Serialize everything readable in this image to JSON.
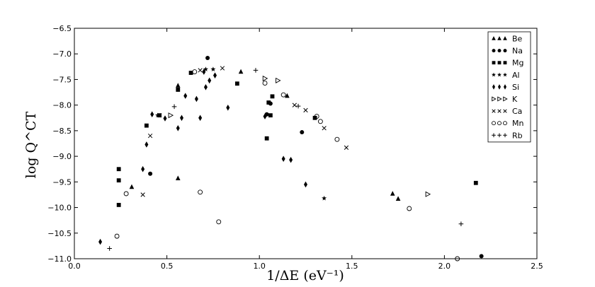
{
  "chart_data": {
    "type": "scatter",
    "xlabel": "1/ΔE (eV⁻¹)",
    "ylabel": "log Q^CT",
    "xlim": [
      0.0,
      2.5
    ],
    "ylim": [
      -11.0,
      -6.5
    ],
    "xticks": [
      0.0,
      0.5,
      1.0,
      1.5,
      2.0,
      2.5
    ],
    "xtick_labels": [
      "0.0",
      "0.5",
      "1.0",
      "1.5",
      "2.0",
      "2.5"
    ],
    "yticks": [
      -6.5,
      -7.0,
      -7.5,
      -8.0,
      -8.5,
      -9.0,
      -9.5,
      -10.0,
      -10.5,
      -11.0
    ],
    "ytick_labels": [
      "−6.5",
      "−7.0",
      "−7.5",
      "−8.0",
      "−8.5",
      "−9.0",
      "−9.5",
      "−10.0",
      "−10.5",
      "−11.0"
    ],
    "grid": false,
    "legend_position": "top-right",
    "series": [
      {
        "name": "Be",
        "marker": "triangle-up",
        "points": [
          [
            0.31,
            -9.6
          ],
          [
            0.56,
            -7.62
          ],
          [
            0.56,
            -9.43
          ],
          [
            0.9,
            -7.35
          ],
          [
            1.15,
            -7.82
          ],
          [
            1.72,
            -9.73
          ],
          [
            1.75,
            -9.83
          ]
        ]
      },
      {
        "name": "Na",
        "marker": "circle-filled",
        "points": [
          [
            0.41,
            -9.34
          ],
          [
            0.72,
            -7.08
          ],
          [
            1.04,
            -8.18
          ],
          [
            1.06,
            -7.97
          ],
          [
            1.23,
            -8.53
          ],
          [
            2.2,
            -10.95
          ]
        ]
      },
      {
        "name": "Mg",
        "marker": "square-filled",
        "points": [
          [
            0.24,
            -9.25
          ],
          [
            0.24,
            -9.47
          ],
          [
            0.24,
            -9.95
          ],
          [
            0.39,
            -8.4
          ],
          [
            0.46,
            -8.2
          ],
          [
            0.56,
            -7.7
          ],
          [
            0.63,
            -7.37
          ],
          [
            0.88,
            -7.58
          ],
          [
            1.04,
            -8.65
          ],
          [
            1.05,
            -7.95
          ],
          [
            1.06,
            -8.2
          ],
          [
            1.07,
            -7.83
          ],
          [
            1.3,
            -8.25
          ],
          [
            2.17,
            -9.52
          ]
        ]
      },
      {
        "name": "Al",
        "marker": "star",
        "points": [
          [
            0.45,
            -8.2
          ],
          [
            0.71,
            -7.3
          ],
          [
            0.75,
            -7.3
          ],
          [
            1.35,
            -9.82
          ]
        ]
      },
      {
        "name": "Si",
        "marker": "diamond-filled",
        "points": [
          [
            0.14,
            -10.67
          ],
          [
            0.37,
            -9.25
          ],
          [
            0.39,
            -8.77
          ],
          [
            0.42,
            -8.18
          ],
          [
            0.49,
            -8.26
          ],
          [
            0.56,
            -8.45
          ],
          [
            0.58,
            -8.25
          ],
          [
            0.6,
            -7.82
          ],
          [
            0.66,
            -7.88
          ],
          [
            0.68,
            -8.25
          ],
          [
            0.7,
            -7.35
          ],
          [
            0.71,
            -7.65
          ],
          [
            0.73,
            -7.52
          ],
          [
            0.76,
            -7.42
          ],
          [
            0.83,
            -8.05
          ],
          [
            1.03,
            -8.22
          ],
          [
            1.13,
            -9.05
          ],
          [
            1.17,
            -9.07
          ],
          [
            1.25,
            -9.55
          ]
        ]
      },
      {
        "name": "K",
        "marker": "triangle-right-open",
        "points": [
          [
            0.52,
            -8.2
          ],
          [
            1.03,
            -7.48
          ],
          [
            1.1,
            -7.52
          ],
          [
            1.91,
            -9.74
          ]
        ]
      },
      {
        "name": "Ca",
        "marker": "x",
        "points": [
          [
            0.37,
            -9.75
          ],
          [
            0.41,
            -8.6
          ],
          [
            0.46,
            -8.2
          ],
          [
            0.68,
            -7.32
          ],
          [
            0.8,
            -7.28
          ],
          [
            1.19,
            -8.0
          ],
          [
            1.25,
            -8.1
          ],
          [
            1.35,
            -8.45
          ],
          [
            1.47,
            -8.83
          ]
        ]
      },
      {
        "name": "Mn",
        "marker": "circle-open",
        "points": [
          [
            0.23,
            -10.56
          ],
          [
            0.28,
            -9.73
          ],
          [
            0.65,
            -7.35
          ],
          [
            0.68,
            -9.7
          ],
          [
            0.78,
            -10.28
          ],
          [
            1.03,
            -7.57
          ],
          [
            1.13,
            -7.8
          ],
          [
            1.31,
            -8.22
          ],
          [
            1.33,
            -8.32
          ],
          [
            1.42,
            -8.67
          ],
          [
            1.81,
            -10.02
          ],
          [
            2.07,
            -11.0
          ]
        ]
      },
      {
        "name": "Rb",
        "marker": "plus",
        "points": [
          [
            0.19,
            -10.8
          ],
          [
            0.54,
            -8.03
          ],
          [
            0.98,
            -7.32
          ],
          [
            1.21,
            -8.02
          ],
          [
            2.09,
            -10.32
          ]
        ]
      }
    ]
  }
}
